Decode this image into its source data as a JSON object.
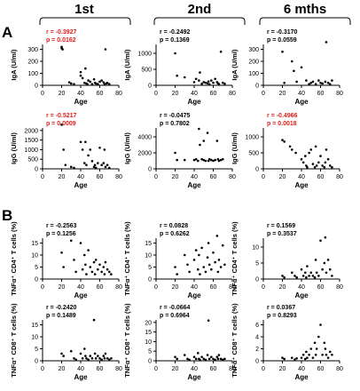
{
  "columns": [
    "1st",
    "2nd",
    "6 mths"
  ],
  "panel_labels": [
    "A",
    "B"
  ],
  "chart_data": [
    {
      "id": "a-iga-1st",
      "type": "scatter",
      "xlabel": "Age",
      "ylabel": "IgA (U/ml)",
      "xlim": [
        0,
        80
      ],
      "xticks": [
        0,
        20,
        40,
        60,
        80
      ],
      "ylim": [
        0,
        400
      ],
      "yticks": [
        0,
        100,
        200,
        300,
        400
      ],
      "stat_r": "r = -0.3927",
      "stat_p": "p = 0.0162",
      "stat_significant": true,
      "x": [
        20,
        20,
        21,
        28,
        30,
        33,
        40,
        40,
        42,
        44,
        45,
        46,
        47,
        48,
        50,
        52,
        54,
        55,
        56,
        58,
        60,
        62,
        64,
        65,
        66,
        67,
        68,
        70
      ],
      "y": [
        320,
        310,
        300,
        25,
        15,
        10,
        110,
        80,
        60,
        20,
        140,
        15,
        10,
        40,
        30,
        10,
        50,
        20,
        15,
        10,
        30,
        40,
        25,
        10,
        300,
        15,
        20,
        10
      ]
    },
    {
      "id": "a-iga-2nd",
      "type": "scatter",
      "xlabel": "Age",
      "ylabel": "IgA (U/ml)",
      "xlim": [
        0,
        80
      ],
      "xticks": [
        0,
        20,
        40,
        60,
        80
      ],
      "ylim": [
        0,
        1500
      ],
      "yticks": [
        0,
        500,
        1000,
        1500
      ],
      "stat_r": "r = -0.2492",
      "stat_p": "p = 0.1369",
      "stat_significant": false,
      "x": [
        20,
        22,
        30,
        40,
        42,
        45,
        46,
        48,
        50,
        52,
        54,
        55,
        56,
        58,
        60,
        62,
        64,
        65,
        66,
        68,
        70,
        72
      ],
      "y": [
        1000,
        300,
        250,
        100,
        200,
        150,
        400,
        50,
        100,
        80,
        60,
        120,
        30,
        150,
        80,
        200,
        100,
        60,
        40,
        1050,
        80,
        50
      ]
    },
    {
      "id": "a-iga-6m",
      "type": "scatter",
      "xlabel": "Age",
      "ylabel": "IgA (U/ml)",
      "xlim": [
        0,
        80
      ],
      "xticks": [
        0,
        20,
        40,
        60,
        80
      ],
      "ylim": [
        0,
        400
      ],
      "yticks": [
        0,
        100,
        200,
        300,
        400
      ],
      "stat_r": "r = -0.3170",
      "stat_p": "p = 0.0559",
      "stat_significant": false,
      "x": [
        20,
        22,
        30,
        32,
        35,
        40,
        45,
        48,
        50,
        52,
        55,
        58,
        60,
        62,
        65,
        66,
        68,
        70,
        72
      ],
      "y": [
        280,
        20,
        200,
        120,
        30,
        150,
        40,
        10,
        20,
        30,
        10,
        40,
        20,
        15,
        30,
        360,
        20,
        10,
        40
      ]
    },
    {
      "id": "a-igg-1st",
      "type": "scatter",
      "xlabel": "Age",
      "ylabel": "IgG (U/ml)",
      "xlim": [
        0,
        80
      ],
      "xticks": [
        0,
        20,
        40,
        60,
        80
      ],
      "ylim": [
        0,
        2500
      ],
      "yticks": [
        0,
        500,
        1000,
        1500,
        2000,
        2500
      ],
      "stat_r": "r = -0.5217",
      "stat_p": "p = 0.0009",
      "stat_significant": true,
      "x": [
        20,
        22,
        24,
        30,
        33,
        40,
        42,
        44,
        45,
        46,
        48,
        50,
        52,
        54,
        55,
        56,
        58,
        60,
        62,
        64,
        65,
        66,
        68,
        70
      ],
      "y": [
        2300,
        1000,
        200,
        100,
        50,
        1400,
        1000,
        300,
        1400,
        200,
        700,
        1000,
        400,
        100,
        200,
        50,
        300,
        1100,
        200,
        300,
        1000,
        100,
        200,
        50
      ]
    },
    {
      "id": "a-igg-2nd",
      "type": "scatter",
      "xlabel": "Age",
      "ylabel": "IgG (U/ml)",
      "xlim": [
        0,
        80
      ],
      "xticks": [
        0,
        20,
        40,
        60,
        80
      ],
      "ylim": [
        0,
        6000
      ],
      "yticks": [
        0,
        2000,
        4000,
        6000
      ],
      "stat_r": "r = -0.0475",
      "stat_p": "p = 0.7802",
      "stat_significant": false,
      "x": [
        20,
        22,
        30,
        40,
        42,
        44,
        45,
        46,
        48,
        50,
        50,
        52,
        54,
        55,
        56,
        58,
        60,
        62,
        64,
        65,
        66,
        68,
        70
      ],
      "y": [
        2000,
        1100,
        1100,
        1100,
        1200,
        1000,
        5000,
        3000,
        1200,
        1100,
        3500,
        1000,
        4500,
        1000,
        1200,
        1100,
        1000,
        1100,
        3500,
        1200,
        1000,
        1100,
        1200
      ]
    },
    {
      "id": "a-igg-6m",
      "type": "scatter",
      "xlabel": "Age",
      "ylabel": "IgG (U/ml)",
      "xlim": [
        0,
        80
      ],
      "xticks": [
        0,
        20,
        40,
        60,
        80
      ],
      "ylim": [
        0,
        1500
      ],
      "yticks": [
        0,
        500,
        1000,
        1500
      ],
      "stat_r": "r = -0.4966",
      "stat_p": "p = 0.0018",
      "stat_significant": true,
      "x": [
        20,
        22,
        28,
        30,
        34,
        40,
        42,
        44,
        45,
        46,
        48,
        50,
        52,
        54,
        55,
        56,
        58,
        60,
        62,
        64,
        65,
        66,
        68,
        70,
        72
      ],
      "y": [
        900,
        850,
        700,
        600,
        500,
        300,
        200,
        400,
        100,
        50,
        500,
        600,
        150,
        50,
        700,
        100,
        200,
        400,
        100,
        50,
        200,
        600,
        300,
        100,
        50
      ]
    },
    {
      "id": "b-tnf-cd4-1st",
      "type": "scatter",
      "xlabel": "Age",
      "ylabel": "TNFα⁺ CD4⁺ T cells (%)",
      "xlim": [
        0,
        80
      ],
      "xticks": [
        0,
        20,
        40,
        60,
        80
      ],
      "ylim": [
        0,
        20
      ],
      "yticks": [
        0,
        5,
        10,
        15,
        20
      ],
      "stat_r": "r = -0.2563",
      "stat_p": "p = 0.1256",
      "stat_significant": false,
      "x": [
        20,
        22,
        30,
        33,
        35,
        40,
        42,
        44,
        45,
        46,
        48,
        50,
        52,
        54,
        55,
        56,
        58,
        60,
        62,
        64,
        65,
        66,
        68,
        70,
        72
      ],
      "y": [
        11,
        5,
        16,
        8,
        3,
        15,
        4,
        10,
        6,
        2,
        12,
        5,
        3,
        7,
        2,
        8,
        4,
        6,
        3,
        5,
        2,
        7,
        4,
        3,
        2
      ]
    },
    {
      "id": "b-tnf-cd4-2nd",
      "type": "scatter",
      "xlabel": "Age",
      "ylabel": "TNFα⁺ CD4⁺ T cells (%)",
      "xlim": [
        0,
        80
      ],
      "xticks": [
        0,
        20,
        40,
        60,
        80
      ],
      "ylim": [
        0,
        20
      ],
      "yticks": [
        0,
        5,
        10,
        15,
        20
      ],
      "stat_r": "r = 0.0828",
      "stat_p": "p = 0.6262",
      "stat_significant": false,
      "x": [
        20,
        22,
        30,
        33,
        35,
        40,
        42,
        44,
        45,
        46,
        48,
        50,
        52,
        54,
        55,
        56,
        58,
        60,
        62,
        64,
        65,
        66,
        68,
        70,
        72
      ],
      "y": [
        5,
        2,
        10,
        6,
        3,
        8,
        12,
        4,
        10,
        2,
        13,
        5,
        3,
        9,
        15,
        6,
        4,
        11,
        7,
        18,
        3,
        8,
        5,
        14,
        6
      ]
    },
    {
      "id": "b-tnf-cd4-6m",
      "type": "scatter",
      "xlabel": "Age",
      "ylabel": "TNFα⁺ CD4⁺ T cells (%)",
      "xlim": [
        0,
        80
      ],
      "xticks": [
        0,
        20,
        40,
        60,
        80
      ],
      "ylim": [
        0,
        15
      ],
      "yticks": [
        0,
        5,
        10,
        15
      ],
      "stat_r": "r = 0.1569",
      "stat_p": "p = 0.3537",
      "stat_significant": false,
      "x": [
        20,
        22,
        30,
        33,
        35,
        40,
        42,
        44,
        45,
        46,
        48,
        50,
        52,
        54,
        55,
        56,
        58,
        60,
        62,
        64,
        65,
        66,
        68,
        70,
        72
      ],
      "y": [
        1,
        0.5,
        2,
        1,
        0.5,
        3,
        1,
        2,
        0.5,
        4,
        1,
        2,
        1,
        0.5,
        6,
        2,
        1,
        12,
        3,
        5,
        13,
        2,
        6,
        3,
        1
      ]
    },
    {
      "id": "b-tnf-cd8-1st",
      "type": "scatter",
      "xlabel": "Age",
      "ylabel": "TNFα⁺ CD8⁺ T cells (%)",
      "xlim": [
        0,
        80
      ],
      "xticks": [
        0,
        20,
        40,
        60,
        80
      ],
      "ylim": [
        0,
        20
      ],
      "yticks": [
        0,
        5,
        10,
        15,
        20
      ],
      "stat_r": "r = -0.2420",
      "stat_p": "p = 0.1489",
      "stat_significant": false,
      "x": [
        20,
        22,
        30,
        33,
        35,
        40,
        42,
        44,
        45,
        46,
        48,
        50,
        52,
        54,
        55,
        56,
        58,
        60,
        62,
        64,
        65,
        66,
        68,
        70,
        72
      ],
      "y": [
        3,
        2,
        4,
        1,
        0.5,
        3,
        1,
        5,
        2,
        1,
        0.5,
        2,
        1,
        17,
        3,
        1,
        2,
        1,
        0.5,
        2,
        1,
        3,
        1,
        0.5,
        1
      ]
    },
    {
      "id": "b-tnf-cd8-2nd",
      "type": "scatter",
      "xlabel": "Age",
      "ylabel": "TNFα⁺ CD8⁺ T cells (%)",
      "xlim": [
        0,
        80
      ],
      "xticks": [
        0,
        20,
        40,
        60,
        80
      ],
      "ylim": [
        0,
        25
      ],
      "yticks": [
        0,
        5,
        10,
        15,
        20,
        25
      ],
      "stat_r": "r = -0.0664",
      "stat_p": "p = 0.6964",
      "stat_significant": false,
      "x": [
        20,
        22,
        30,
        33,
        35,
        40,
        42,
        44,
        45,
        46,
        48,
        50,
        52,
        54,
        55,
        56,
        58,
        60,
        62,
        64,
        65,
        66,
        68,
        70,
        72
      ],
      "y": [
        2,
        1,
        3,
        1,
        0.5,
        2,
        1,
        4,
        1,
        0.5,
        2,
        1,
        0.5,
        3,
        21,
        1,
        2,
        1,
        0.5,
        2,
        1,
        3,
        1,
        0.5,
        1
      ]
    },
    {
      "id": "b-tnf-cd8-6m",
      "type": "scatter",
      "xlabel": "Age",
      "ylabel": "TNFα⁺ CD8⁺ T cells (%)",
      "xlim": [
        0,
        80
      ],
      "xticks": [
        0,
        20,
        40,
        60,
        80
      ],
      "ylim": [
        0,
        8
      ],
      "yticks": [
        0,
        2,
        4,
        6,
        8
      ],
      "stat_r": "r = 0.0367",
      "stat_p": "p = 0.8293",
      "stat_significant": false,
      "x": [
        20,
        22,
        30,
        33,
        35,
        40,
        42,
        44,
        45,
        46,
        48,
        50,
        52,
        54,
        55,
        56,
        58,
        60,
        62,
        64,
        65,
        66,
        68,
        70,
        72
      ],
      "y": [
        0.5,
        0.3,
        0.5,
        0.2,
        0.4,
        0.5,
        1,
        0.3,
        1.5,
        0.5,
        1,
        2,
        0.5,
        3,
        1,
        2,
        4,
        6,
        1,
        3,
        2,
        1,
        0.5,
        1.5,
        1
      ]
    }
  ],
  "colors": {
    "axis": "#000000",
    "dot": "#000000",
    "stat_significant": "#e0201b",
    "stat_normal": "#000000"
  }
}
